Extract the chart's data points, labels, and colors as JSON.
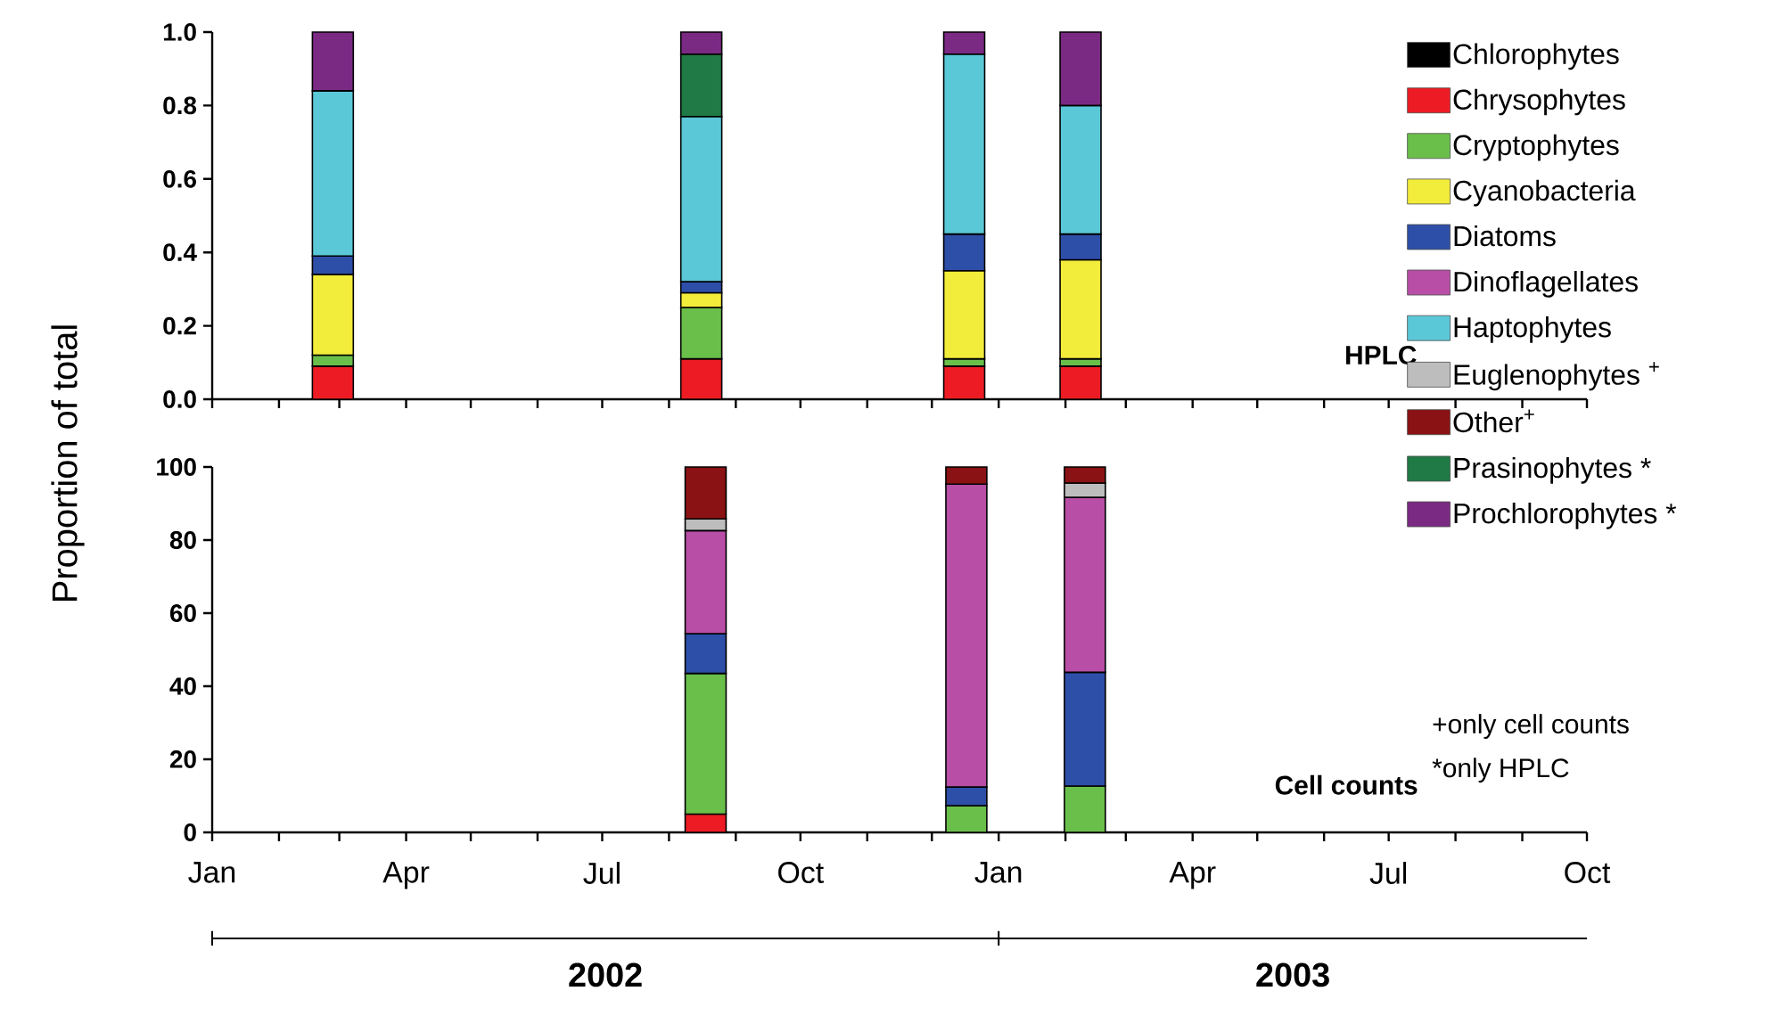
{
  "chart_data": [
    {
      "type": "bar",
      "stacked": true,
      "ylabel": "Proportion of total",
      "legend": "right",
      "tick_labels": "y",
      "annotations": [
        "HPLC"
      ],
      "x": [
        "2002-02-26",
        "2002-08-16",
        "2002-12-16",
        "2003-02-08"
      ],
      "xlim": [
        "2002-01",
        "2003-10"
      ],
      "xticks": [
        {
          "value": "2002-01",
          "label": null
        },
        {
          "value": "2002-02",
          "label": null
        },
        {
          "value": "2002-03",
          "label": null
        },
        {
          "value": "2002-04",
          "label": null
        },
        {
          "value": "2002-05",
          "label": null
        },
        {
          "value": "2002-06",
          "label": null
        },
        {
          "value": "2002-07",
          "label": null
        },
        {
          "value": "2002-08",
          "label": null
        },
        {
          "value": "2002-09",
          "label": null
        },
        {
          "value": "2002-10",
          "label": null
        },
        {
          "value": "2002-11",
          "label": null
        },
        {
          "value": "2002-12",
          "label": null
        },
        {
          "value": "2003-01",
          "label": null
        },
        {
          "value": "2003-02",
          "label": null
        },
        {
          "value": "2003-03",
          "label": null
        },
        {
          "value": "2003-04",
          "label": null
        },
        {
          "value": "2003-05",
          "label": null
        },
        {
          "value": "2003-06",
          "label": null
        },
        {
          "value": "2003-07",
          "label": null
        },
        {
          "value": "2003-08",
          "label": null
        },
        {
          "value": "2003-09",
          "label": null
        },
        {
          "value": "2003-10",
          "label": null
        }
      ],
      "ylim": [
        0,
        1
      ],
      "yticks": [
        {
          "value": 0,
          "label": "0.0"
        },
        {
          "value": 0.2,
          "label": "0.2"
        },
        {
          "value": 0.4,
          "label": "0.4"
        },
        {
          "value": 0.6,
          "label": "0.6"
        },
        {
          "value": 0.8,
          "label": "0.8"
        },
        {
          "value": 1,
          "label": "1.0"
        }
      ],
      "series": [
        {
          "name": "Chlorophytes",
          "color": "#000000",
          "values": [
            null,
            null,
            null,
            null
          ]
        },
        {
          "name": "Chrysophytes",
          "color": "#ed1c24",
          "values": [
            0.09,
            0.11,
            0.09,
            0.09
          ]
        },
        {
          "name": "Cryptophytes",
          "color": "#6abf4b",
          "values": [
            0.03,
            0.14,
            0.02,
            0.02
          ]
        },
        {
          "name": "Cyanobacteria",
          "color": "#f2ec3a",
          "values": [
            0.22,
            0.04,
            0.24,
            0.27
          ]
        },
        {
          "name": "Diatoms",
          "color": "#2e4fa8",
          "values": [
            0.05,
            0.03,
            0.1,
            0.07
          ]
        },
        {
          "name": "Dinoflagellates",
          "color": "#b84ea6",
          "values": [
            null,
            null,
            null,
            null
          ]
        },
        {
          "name": "Haptophytes",
          "color": "#5bc8d8",
          "values": [
            0.45,
            0.45,
            0.49,
            0.35
          ]
        },
        {
          "name": "Euglenophytes $^{+}$",
          "color": "#bdbdbd",
          "values": [
            null,
            null,
            null,
            null
          ]
        },
        {
          "name": "Other$^{+}$",
          "color": "#8b1214",
          "values": [
            null,
            null,
            null,
            null
          ]
        },
        {
          "name": "Prasinophytes *",
          "color": "#1f7a45",
          "values": [
            null,
            0.17,
            null,
            null
          ]
        },
        {
          "name": "Prochlorophytes *",
          "color": "#7b2a84",
          "values": [
            0.16,
            0.06,
            0.06,
            0.2
          ]
        }
      ]
    },
    {
      "type": "bar",
      "stacked": true,
      "annotations": [
        "Cell counts",
        "+only cell counts",
        "*only HPLC",
        "2002",
        "2003"
      ],
      "x": [
        "2002-08-18",
        "2002-12-17",
        "2003-02-10"
      ],
      "xlim": [
        "2002-01",
        "2003-10"
      ],
      "xticks": [
        {
          "value": "2002-01",
          "label": "Jan"
        },
        {
          "value": "2002-02",
          "label": null
        },
        {
          "value": "2002-03",
          "label": null
        },
        {
          "value": "2002-04",
          "label": "Apr"
        },
        {
          "value": "2002-05",
          "label": null
        },
        {
          "value": "2002-06",
          "label": null
        },
        {
          "value": "2002-07",
          "label": "Jul"
        },
        {
          "value": "2002-08",
          "label": null
        },
        {
          "value": "2002-09",
          "label": null
        },
        {
          "value": "2002-10",
          "label": "Oct"
        },
        {
          "value": "2002-11",
          "label": null
        },
        {
          "value": "2002-12",
          "label": null
        },
        {
          "value": "2003-01",
          "label": "Jan"
        },
        {
          "value": "2003-02",
          "label": null
        },
        {
          "value": "2003-03",
          "label": null
        },
        {
          "value": "2003-04",
          "label": "Apr"
        },
        {
          "value": "2003-05",
          "label": null
        },
        {
          "value": "2003-06",
          "label": null
        },
        {
          "value": "2003-07",
          "label": "Jul"
        },
        {
          "value": "2003-08",
          "label": null
        },
        {
          "value": "2003-09",
          "label": null
        },
        {
          "value": "2003-10",
          "label": "Oct"
        }
      ],
      "ylim": [
        0,
        100
      ],
      "yticks": [
        0,
        20,
        40,
        60,
        80,
        100
      ],
      "series": [
        {
          "color": "#000000",
          "values": [
            null,
            null,
            null
          ]
        },
        {
          "color": "#ed1c24",
          "values": [
            5,
            null,
            null
          ]
        },
        {
          "color": "#6abf4b",
          "values": [
            38.5,
            7.3,
            12.7
          ]
        },
        {
          "color": "#f2ec3a",
          "values": [
            null,
            null,
            null
          ]
        },
        {
          "color": "#2e4fa8",
          "values": [
            10.9,
            5.1,
            31.1
          ]
        },
        {
          "color": "#b84ea6",
          "values": [
            28.2,
            82.9,
            47.9
          ]
        },
        {
          "color": "#5bc8d8",
          "values": [
            null,
            null,
            null
          ]
        },
        {
          "color": "#bdbdbd",
          "values": [
            3.2,
            null,
            3.9
          ]
        },
        {
          "color": "#8b1214",
          "values": [
            14.2,
            4.7,
            4.4
          ]
        },
        {
          "color": "#1f7a45",
          "values": [
            null,
            null,
            null
          ]
        },
        {
          "color": "#7b2a84",
          "values": [
            null,
            null,
            null
          ]
        }
      ]
    }
  ]
}
